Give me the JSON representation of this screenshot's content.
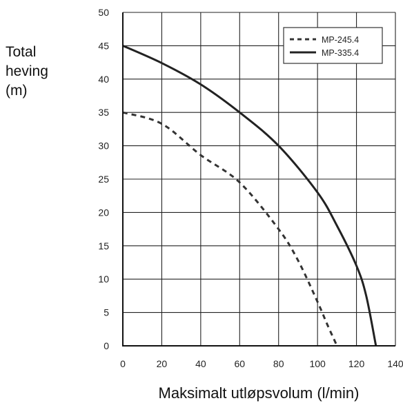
{
  "chart_data": {
    "type": "line",
    "title": "",
    "xlabel": "Maksimalt utløpsvolum (l/min)",
    "ylabel_lines": [
      "Total",
      "heving",
      "(m)"
    ],
    "xlim": [
      0,
      140
    ],
    "ylim": [
      0,
      50
    ],
    "x_ticks": [
      0,
      20,
      40,
      60,
      80,
      100,
      120,
      140
    ],
    "y_ticks": [
      0,
      5,
      10,
      15,
      20,
      25,
      30,
      35,
      40,
      45,
      50
    ],
    "grid": true,
    "legend_position": "top-right",
    "series": [
      {
        "name": "MP-245.4",
        "style": "dashed",
        "color": "#333333",
        "points": [
          [
            0,
            35
          ],
          [
            20,
            33.3
          ],
          [
            40,
            28.6
          ],
          [
            60,
            24.5
          ],
          [
            80,
            17.5
          ],
          [
            90,
            12.8
          ],
          [
            100,
            6.6
          ],
          [
            105,
            3.2
          ],
          [
            110,
            0
          ]
        ]
      },
      {
        "name": "MP-335.4",
        "style": "solid",
        "color": "#222222",
        "points": [
          [
            0,
            45
          ],
          [
            20,
            42.4
          ],
          [
            40,
            39.2
          ],
          [
            60,
            35
          ],
          [
            80,
            30
          ],
          [
            100,
            23
          ],
          [
            110,
            18
          ],
          [
            120,
            12
          ],
          [
            125,
            7.5
          ],
          [
            130,
            0
          ]
        ]
      }
    ]
  }
}
